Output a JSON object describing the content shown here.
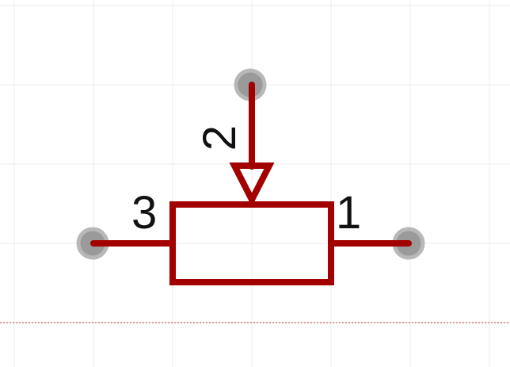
{
  "diagram": {
    "component": "potentiometer",
    "pins": [
      {
        "label": "1",
        "side": "right"
      },
      {
        "label": "2",
        "side": "wiper",
        "label_rotation": "vertical"
      },
      {
        "label": "3",
        "side": "left"
      }
    ]
  },
  "colors": {
    "wire": "#a30000",
    "pin_dot": "#9a9a9a",
    "pin_dot_ring": "#b8b8b8",
    "grid": "#ececec",
    "boundary_line": "#c03030",
    "text": "#111111"
  }
}
